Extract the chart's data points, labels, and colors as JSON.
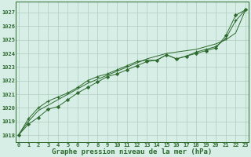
{
  "title": "Graphe pression niveau de la mer (hPa)",
  "x_ticks": [
    0,
    1,
    2,
    3,
    4,
    5,
    6,
    7,
    8,
    9,
    10,
    11,
    12,
    13,
    14,
    15,
    16,
    17,
    18,
    19,
    20,
    21,
    22,
    23
  ],
  "xlim": [
    -0.3,
    23.3
  ],
  "ylim": [
    1017.5,
    1027.8
  ],
  "yticks": [
    1018,
    1019,
    1020,
    1021,
    1022,
    1023,
    1024,
    1025,
    1026,
    1027
  ],
  "bg_color": "#d6eee6",
  "grid_color": "#b0ccc0",
  "line_color": "#2d6a2d",
  "line1": [
    1018.0,
    1018.8,
    1019.3,
    1019.9,
    1020.1,
    1020.6,
    1021.1,
    1021.5,
    1021.9,
    1022.3,
    1022.5,
    1022.8,
    1023.1,
    1023.4,
    1023.5,
    1023.9,
    1023.6,
    1023.8,
    1024.0,
    1024.2,
    1024.4,
    1025.3,
    1026.8,
    1027.2
  ],
  "line2": [
    1018.0,
    1019.2,
    1020.0,
    1020.5,
    1020.8,
    1021.1,
    1021.5,
    1022.0,
    1022.3,
    1022.5,
    1022.8,
    1023.1,
    1023.4,
    1023.5,
    1023.5,
    1023.9,
    1023.6,
    1023.8,
    1024.1,
    1024.3,
    1024.5,
    1025.1,
    1026.4,
    1027.2
  ],
  "line3": [
    1018.0,
    1019.0,
    1019.8,
    1020.2,
    1020.6,
    1021.0,
    1021.4,
    1021.8,
    1022.1,
    1022.4,
    1022.7,
    1023.0,
    1023.3,
    1023.6,
    1023.8,
    1024.0,
    1024.1,
    1024.2,
    1024.3,
    1024.5,
    1024.7,
    1025.0,
    1025.5,
    1027.2
  ],
  "font_size_tick": 5.0,
  "font_size_label": 6.5
}
